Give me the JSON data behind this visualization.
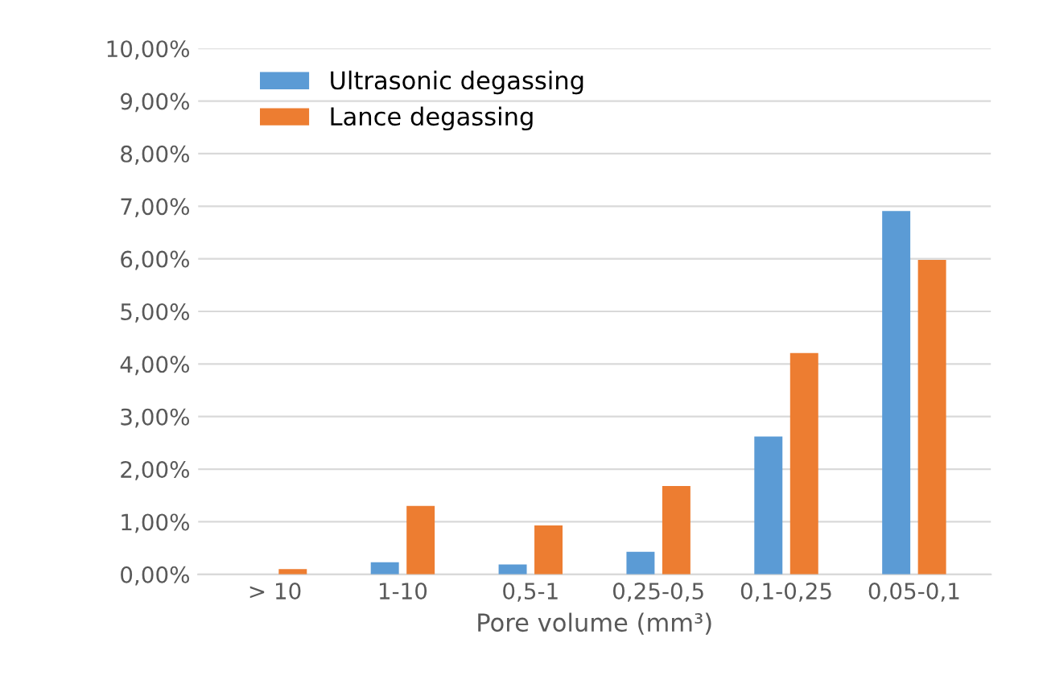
{
  "chart_data": {
    "type": "bar",
    "xlabel": "Pore volume (mm³)",
    "categories": [
      "> 10",
      "1-10",
      "0,5-1",
      "0,25-0,5",
      "0,1-0,25",
      "0,05-0,1"
    ],
    "series": [
      {
        "name": "Ultrasonic degassing",
        "color": "#5b9bd5",
        "values": [
          0,
          0.23,
          0.19,
          0.43,
          2.62,
          6.91
        ]
      },
      {
        "name": "Lance degassing",
        "color": "#ed7d31",
        "values": [
          0.1,
          1.3,
          0.93,
          1.68,
          4.21,
          5.98
        ]
      }
    ],
    "ylim": [
      0,
      10
    ],
    "yticks": [
      {
        "value": 0,
        "label": "0,00%"
      },
      {
        "value": 1,
        "label": "1,00%"
      },
      {
        "value": 2,
        "label": "2,00%"
      },
      {
        "value": 3,
        "label": "3,00%"
      },
      {
        "value": 4,
        "label": "4,00%"
      },
      {
        "value": 5,
        "label": "5,00%"
      },
      {
        "value": 6,
        "label": "6,00%"
      },
      {
        "value": 7,
        "label": "7,00%"
      },
      {
        "value": 8,
        "label": "8,00%"
      },
      {
        "value": 9,
        "label": "9,00%"
      },
      {
        "value": 10,
        "label": "10,00%"
      }
    ],
    "grid": "y",
    "legend": "top left"
  }
}
